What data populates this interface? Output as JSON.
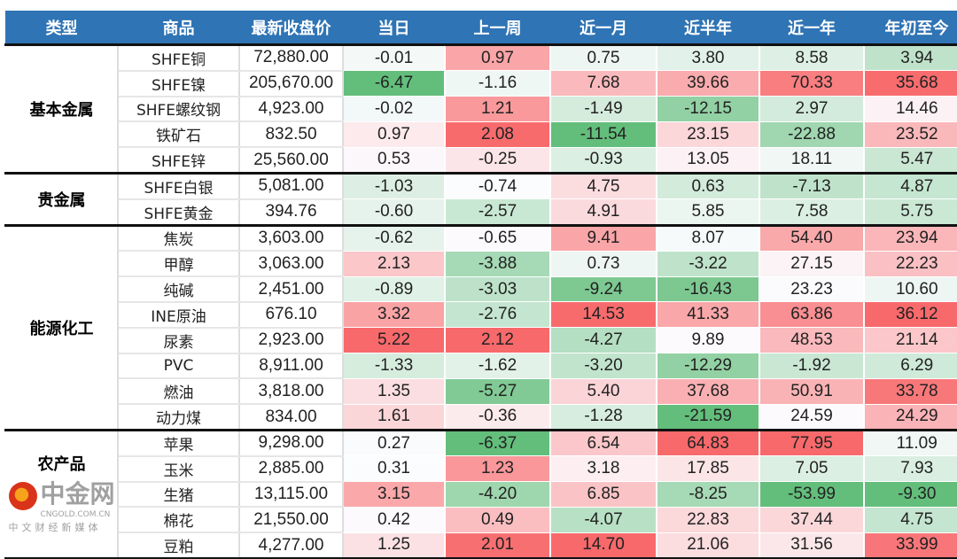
{
  "headers": [
    "类型",
    "商品",
    "最新收盘价",
    "当日",
    "上一周",
    "近一月",
    "近半年",
    "近一年",
    "年初至今"
  ],
  "groups": [
    {
      "type": "基本金属",
      "rows": [
        [
          "SHFE铜",
          "72,880.00",
          "-0.01",
          "0.97",
          "0.75",
          "3.80",
          "8.58",
          "3.94"
        ],
        [
          "SHFE镍",
          "205,670.00",
          "-6.47",
          "-1.16",
          "7.68",
          "39.66",
          "70.33",
          "35.68"
        ],
        [
          "SHFE螺纹钢",
          "4,923.00",
          "-0.02",
          "1.21",
          "-1.49",
          "-12.15",
          "2.97",
          "14.46"
        ],
        [
          "铁矿石",
          "832.50",
          "0.97",
          "2.08",
          "-11.54",
          "23.15",
          "-22.88",
          "23.52"
        ],
        [
          "SHFE锌",
          "25,560.00",
          "0.53",
          "-0.25",
          "-0.93",
          "13.05",
          "18.11",
          "5.47"
        ]
      ]
    },
    {
      "type": "贵金属",
      "rows": [
        [
          "SHFE白银",
          "5,081.00",
          "-1.03",
          "-0.74",
          "4.75",
          "0.63",
          "-7.13",
          "4.87"
        ],
        [
          "SHFE黄金",
          "394.76",
          "-0.60",
          "-2.57",
          "4.91",
          "5.85",
          "7.58",
          "5.75"
        ]
      ]
    },
    {
      "type": "能源化工",
      "rows": [
        [
          "焦炭",
          "3,603.00",
          "-0.62",
          "-0.65",
          "9.41",
          "8.07",
          "54.40",
          "23.94"
        ],
        [
          "甲醇",
          "3,063.00",
          "2.13",
          "-3.88",
          "0.73",
          "-3.22",
          "27.15",
          "22.23"
        ],
        [
          "纯碱",
          "2,451.00",
          "-0.89",
          "-3.03",
          "-9.24",
          "-16.43",
          "23.23",
          "10.60"
        ],
        [
          "INE原油",
          "676.10",
          "3.32",
          "-2.76",
          "14.53",
          "41.33",
          "63.86",
          "36.12"
        ],
        [
          "尿素",
          "2,923.00",
          "5.22",
          "2.12",
          "-4.27",
          "9.89",
          "48.53",
          "21.14"
        ],
        [
          "PVC",
          "8,911.00",
          "-1.33",
          "-1.62",
          "-3.20",
          "-12.29",
          "-1.92",
          "6.29"
        ],
        [
          "燃油",
          "3,818.00",
          "1.35",
          "-5.27",
          "5.40",
          "37.68",
          "50.91",
          "33.78"
        ],
        [
          "动力煤",
          "834.00",
          "1.61",
          "-0.36",
          "-1.28",
          "-21.59",
          "24.59",
          "24.29"
        ]
      ]
    },
    {
      "type": "农产品",
      "rows": [
        [
          "苹果",
          "9,298.00",
          "0.27",
          "-6.37",
          "6.54",
          "64.83",
          "77.95",
          "11.09"
        ],
        [
          "玉米",
          "2,885.00",
          "0.31",
          "1.23",
          "3.18",
          "17.85",
          "7.05",
          "7.93"
        ],
        [
          "生猪",
          "13,115.00",
          "3.15",
          "-4.20",
          "6.85",
          "-8.25",
          "-53.99",
          "-9.30"
        ],
        [
          "棉花",
          "21,550.00",
          "0.42",
          "0.49",
          "-4.07",
          "22.83",
          "37.44",
          "4.75"
        ],
        [
          "豆粕",
          "4,277.00",
          "1.25",
          "2.01",
          "14.70",
          "21.06",
          "31.56",
          "33.99"
        ]
      ]
    }
  ],
  "colors": {
    "header": "#2F74B5",
    "low": "#63BE7B",
    "mid": "#FCFCFF",
    "high": "#F8696B"
  },
  "watermark": {
    "name": "中金网",
    "url": "CNGOLD.COM.CN",
    "tagline": "中文财经新媒体"
  }
}
